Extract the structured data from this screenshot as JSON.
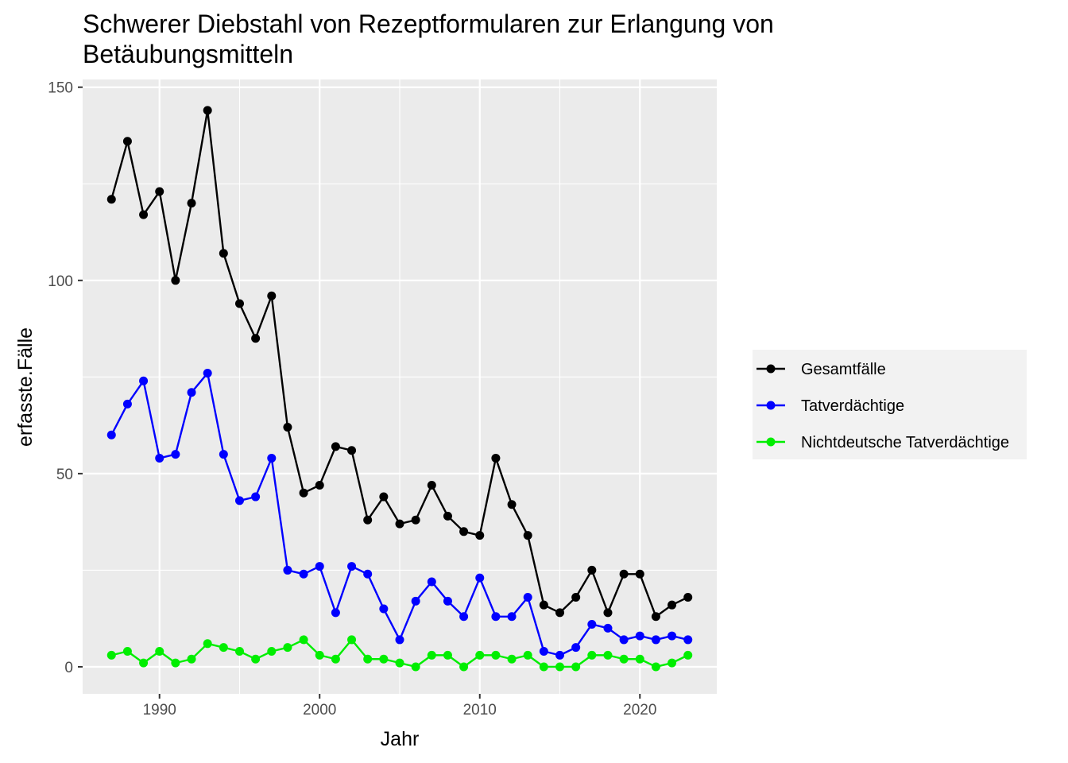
{
  "chart_data": {
    "type": "line",
    "title_lines": [
      "Schwerer Diebstahl von Rezeptformularen zur Erlangung von",
      "Betäubungsmitteln"
    ],
    "xlabel": "Jahr",
    "ylabel": "erfasste.Fälle",
    "xlim": [
      1985.2,
      2024.8
    ],
    "ylim": [
      -7,
      152
    ],
    "x_ticks": [
      1990,
      2000,
      2010,
      2020
    ],
    "y_ticks": [
      0,
      50,
      100,
      150
    ],
    "grid": true,
    "legend_position": "right",
    "x": [
      1987,
      1988,
      1989,
      1990,
      1991,
      1992,
      1993,
      1994,
      1995,
      1996,
      1997,
      1998,
      1999,
      2000,
      2001,
      2002,
      2003,
      2004,
      2005,
      2006,
      2007,
      2008,
      2009,
      2010,
      2011,
      2012,
      2013,
      2014,
      2015,
      2016,
      2017,
      2018,
      2019,
      2020,
      2021,
      2022,
      2023
    ],
    "series": [
      {
        "name": "Gesamtfälle",
        "color": "#000000",
        "values": [
          121,
          136,
          117,
          123,
          100,
          120,
          144,
          107,
          94,
          85,
          96,
          62,
          45,
          47,
          57,
          56,
          38,
          44,
          37,
          38,
          47,
          39,
          35,
          34,
          54,
          42,
          34,
          16,
          14,
          18,
          25,
          14,
          24,
          24,
          13,
          16,
          18
        ]
      },
      {
        "name": "Tatverdächtige",
        "color": "#0000ff",
        "values": [
          60,
          68,
          74,
          54,
          55,
          71,
          76,
          55,
          43,
          44,
          54,
          25,
          24,
          26,
          14,
          26,
          24,
          15,
          7,
          17,
          22,
          17,
          13,
          23,
          13,
          13,
          18,
          4,
          3,
          5,
          11,
          10,
          7,
          8,
          7,
          8,
          7
        ]
      },
      {
        "name": "Nichtdeutsche Tatverdächtige",
        "color": "#00ee00",
        "values": [
          3,
          4,
          1,
          4,
          1,
          2,
          6,
          5,
          4,
          2,
          4,
          5,
          7,
          3,
          2,
          7,
          2,
          2,
          1,
          0,
          3,
          3,
          0,
          3,
          3,
          2,
          3,
          0,
          0,
          0,
          3,
          3,
          2,
          2,
          0,
          1,
          3
        ]
      }
    ]
  }
}
